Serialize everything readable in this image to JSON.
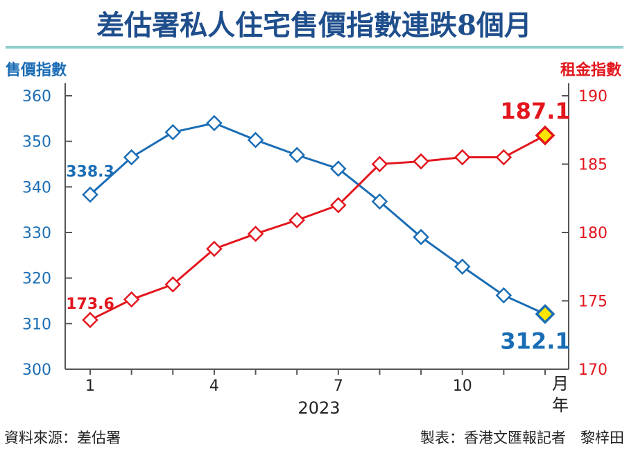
{
  "title": "差估署私人住宅售價指數連跌8個月",
  "left_axis_label": "售價指數",
  "right_axis_label": "租金指數",
  "x_unit_label": "月",
  "year_unit_label": "年",
  "year": "2023",
  "source": "資料來源：差估署",
  "credit": "製表：香港文匯報記者　黎梓田",
  "colors": {
    "title": "#1f4e8c",
    "price": "#1a6db5",
    "rent": "#e3151d",
    "highlight_fill": "#ffe600",
    "title_rule": "#8fd0cc"
  },
  "chart_data": {
    "type": "line",
    "x": [
      1,
      2,
      3,
      4,
      5,
      6,
      7,
      8,
      9,
      10,
      11,
      12
    ],
    "x_ticks": [
      1,
      4,
      7,
      10
    ],
    "series": [
      {
        "name": "售價指數",
        "axis": "left",
        "values": [
          338.3,
          346.5,
          352.0,
          354.0,
          350.3,
          347.0,
          344.0,
          336.8,
          329.0,
          322.5,
          316.2,
          312.1
        ],
        "labels": {
          "first": "338.3",
          "last": "312.1"
        }
      },
      {
        "name": "租金指數",
        "axis": "right",
        "values": [
          173.6,
          175.1,
          176.2,
          178.8,
          179.9,
          180.9,
          182.0,
          185.0,
          185.2,
          185.5,
          185.5,
          187.1
        ],
        "labels": {
          "first": "173.6",
          "last": "187.1"
        }
      }
    ],
    "left_ylim": [
      300,
      360
    ],
    "left_ticks": [
      300,
      310,
      320,
      330,
      340,
      350,
      360
    ],
    "right_ylim": [
      170,
      190
    ],
    "right_ticks": [
      170,
      175,
      180,
      185,
      190
    ],
    "grid": false
  }
}
